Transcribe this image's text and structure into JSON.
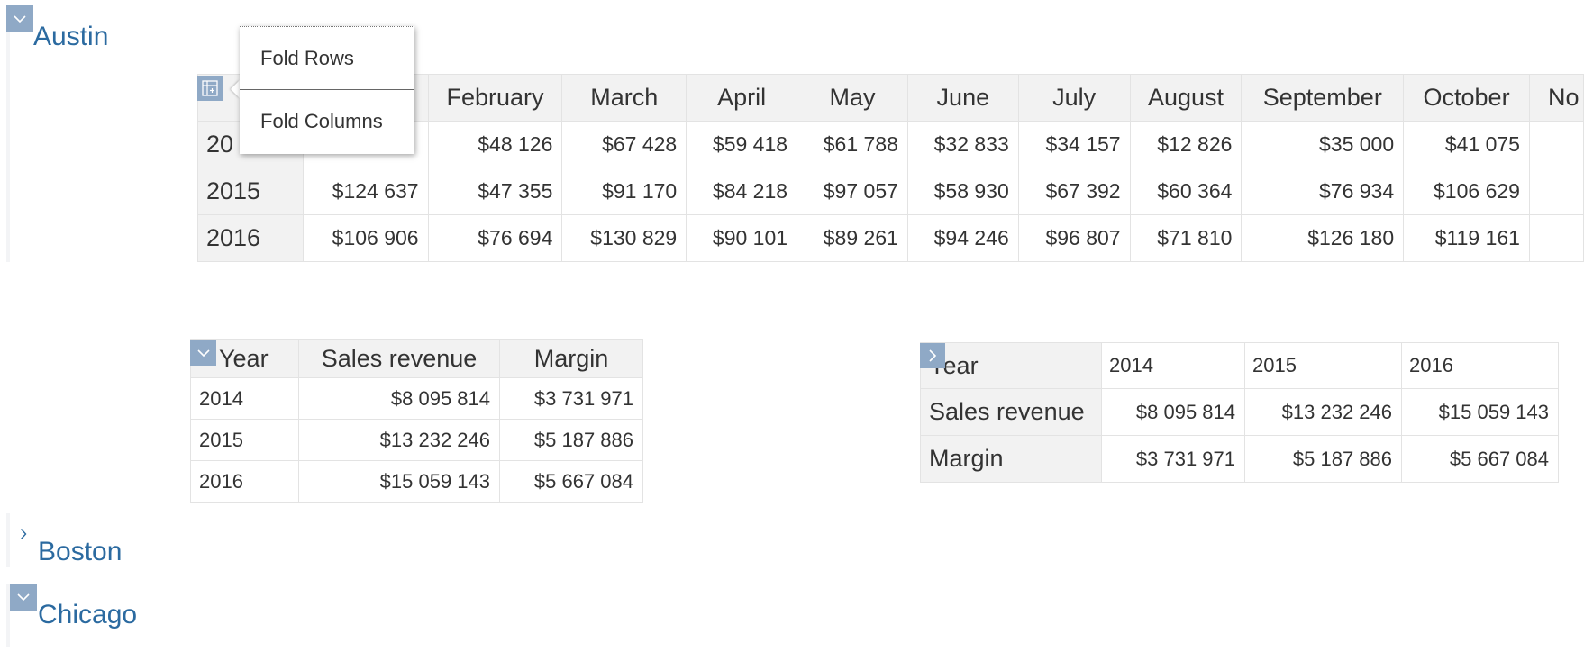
{
  "sections": {
    "austin": {
      "title": "Austin"
    },
    "boston": {
      "title": "Boston"
    },
    "chicago": {
      "title": "Chicago"
    }
  },
  "popup": {
    "fold_rows": "Fold Rows",
    "fold_columns": "Fold Columns"
  },
  "month_table": {
    "columns": [
      "February",
      "March",
      "April",
      "May",
      "June",
      "July",
      "August",
      "September",
      "October",
      "No"
    ],
    "rows": [
      {
        "year": "20",
        "values": [
          "$48 126",
          "$67 428",
          "$59 418",
          "$61 788",
          "$32 833",
          "$34 157",
          "$12 826",
          "$35 000",
          "$41 075"
        ]
      },
      {
        "year": "2015",
        "first": "$124 637",
        "values": [
          "$47 355",
          "$91 170",
          "$84 218",
          "$97 057",
          "$58 930",
          "$67 392",
          "$60 364",
          "$76 934",
          "$106 629"
        ]
      },
      {
        "year": "2016",
        "first": "$106 906",
        "values": [
          "$76 694",
          "$130 829",
          "$90 101",
          "$89 261",
          "$94 246",
          "$96 807",
          "$71 810",
          "$126 180",
          "$119 161"
        ]
      }
    ]
  },
  "year_table": {
    "headers": [
      "Year",
      "Sales revenue",
      "Margin"
    ],
    "rows": [
      [
        "2014",
        "$8 095 814",
        "$3 731 971"
      ],
      [
        "2015",
        "$13 232 246",
        "$5 187 886"
      ],
      [
        "2016",
        "$15 059 143",
        "$5 667 084"
      ]
    ]
  },
  "transposed_table": {
    "corner": "Year",
    "years": [
      "2014",
      "2015",
      "2016"
    ],
    "rows": [
      {
        "label": "Sales revenue",
        "values": [
          "$8 095 814",
          "$13 232 246",
          "$15 059 143"
        ]
      },
      {
        "label": "Margin",
        "values": [
          "$3 731 971",
          "$5 187 886",
          "$5 667 084"
        ]
      }
    ]
  },
  "colors": {
    "accent": "#8fa9c6",
    "title": "#2b6aa0",
    "header_bg": "#f2f2f2",
    "grid": "#e3e3e3"
  }
}
